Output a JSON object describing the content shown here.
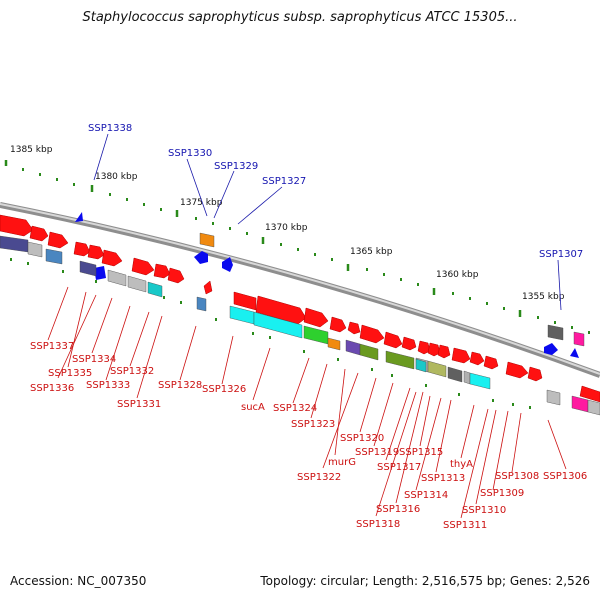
{
  "title": "Staphylococcus saprophyticus subsp. saprophyticus ATCC 15305...",
  "footer": {
    "accession": "Accession: NC_007350",
    "summary": "Topology: circular; Length: 2,516,575 bp; Genes: 2,526"
  },
  "colors": {
    "forward_gene": "#ff1111",
    "reverse_gene": "#0a0aee",
    "gene_label_forward": "#1515b0",
    "gene_label_reverse": "#cc1010",
    "tick": "#2a8a1a",
    "backbone": "#9a9a9a"
  },
  "scale_labels": [
    "1385 kbp",
    "1380 kbp",
    "1375 kbp",
    "1370 kbp",
    "1365 kbp",
    "1360 kbp",
    "1355 kbp"
  ],
  "labels_above": [
    "SSP1338",
    "SSP1330",
    "SSP1329",
    "SSP1327",
    "SSP1307"
  ],
  "labels_below": [
    "SSP1337",
    "SSP1335",
    "SSP1336",
    "SSP1334",
    "SSP1333",
    "SSP1332",
    "SSP1331",
    "SSP1328",
    "SSP1326",
    "sucA",
    "SSP1324",
    "SSP1323",
    "murG",
    "SSP1322",
    "SSP1320",
    "SSP1319",
    "SSP1317",
    "SSP1318",
    "SSP1316",
    "SSP1315",
    "SSP1314",
    "SSP1313",
    "thyA",
    "SSP1311",
    "SSP1310",
    "SSP1309",
    "SSP1308",
    "SSP1306"
  ]
}
